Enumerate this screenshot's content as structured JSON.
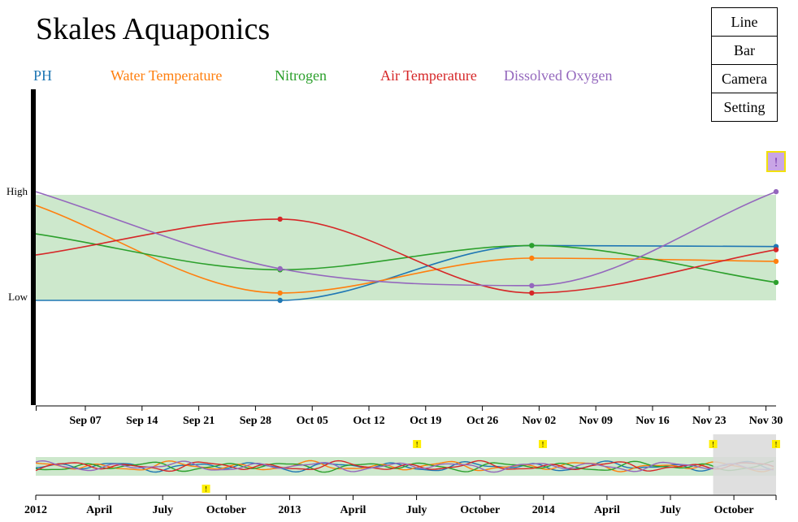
{
  "app": {
    "title": "Skales Aquaponics"
  },
  "nav": {
    "items": [
      "Line",
      "Bar",
      "Camera",
      "Setting"
    ]
  },
  "alerts": {
    "glyph": "!"
  },
  "colors": {
    "band": "#cde8cc",
    "brush": "#d9d9d9",
    "alert_big_bg": "#c9a5e6",
    "alert_big_border": "#f2e10a",
    "alert_small_bg": "#ffee00"
  },
  "chart_data": [
    {
      "type": "line",
      "role": "focus",
      "bands": {
        "high_label": "High",
        "low_label": "Low"
      },
      "x_tick_labels": [
        "Sep 07",
        "Sep 14",
        "Sep 21",
        "Sep 28",
        "Oct 05",
        "Oct 12",
        "Oct 19",
        "Oct 26",
        "Nov 02",
        "Nov 09",
        "Nov 16",
        "Nov 23",
        "Nov 30"
      ],
      "series": [
        {
          "name": "PH",
          "color": "#1f77b4",
          "points": [
            [
              0,
              0.0
            ],
            [
              0.33,
              0.0
            ],
            [
              0.67,
              0.52
            ],
            [
              1.0,
              0.51
            ]
          ],
          "markers": [
            1,
            2,
            3
          ]
        },
        {
          "name": "Water Temperature",
          "color": "#ff7f0e",
          "points": [
            [
              0,
              0.9
            ],
            [
              0.33,
              0.07
            ],
            [
              0.67,
              0.4
            ],
            [
              1.0,
              0.37
            ]
          ],
          "markers": [
            1,
            2,
            3
          ]
        },
        {
          "name": "Nitrogen",
          "color": "#2ca02c",
          "points": [
            [
              0,
              0.63
            ],
            [
              0.33,
              0.29
            ],
            [
              0.67,
              0.52
            ],
            [
              1.0,
              0.17
            ]
          ],
          "markers": [
            1,
            2,
            3
          ]
        },
        {
          "name": "Air Temperature",
          "color": "#d62728",
          "points": [
            [
              0,
              0.43
            ],
            [
              0.33,
              0.77
            ],
            [
              0.67,
              0.07
            ],
            [
              1.0,
              0.48
            ]
          ],
          "markers": [
            1,
            2,
            3
          ]
        },
        {
          "name": "Dissolved Oxygen",
          "color": "#9467bd",
          "points": [
            [
              0,
              1.03
            ],
            [
              0.33,
              0.3
            ],
            [
              0.67,
              0.14
            ],
            [
              1.0,
              1.03
            ]
          ],
          "markers": [
            1,
            2,
            3
          ]
        }
      ]
    },
    {
      "type": "line",
      "role": "context-overview",
      "x_tick_labels": [
        "2012",
        "April",
        "July",
        "October",
        "2013",
        "April",
        "July",
        "October",
        "2014",
        "April",
        "July",
        "October"
      ],
      "brush_range": [
        0.915,
        1.0
      ],
      "alert_positions": [
        0.23,
        0.515,
        0.685,
        0.915,
        1.0
      ]
    }
  ]
}
